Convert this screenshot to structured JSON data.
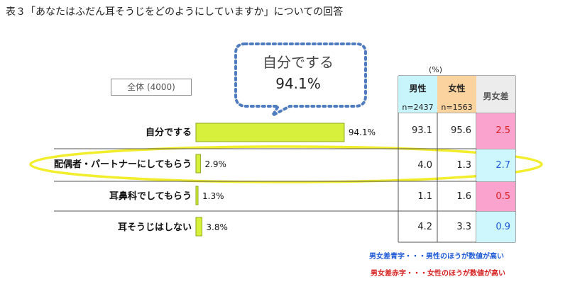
{
  "title": "表３「あなたはふだん耳そうじをどのようにしていますか」についての回答",
  "total_label": "全体 (4000)",
  "callout": {
    "title": "自分でする",
    "value": "94.1%"
  },
  "unit": "(%)",
  "table": {
    "headers": {
      "male": {
        "name": "男性",
        "n": "n=2437"
      },
      "female": {
        "name": "女性",
        "n": "n=1563"
      },
      "diff": {
        "name": "男女差"
      }
    },
    "rows": [
      {
        "male": "93.1",
        "female": "95.6",
        "diff": "2.5",
        "diff_color": "red"
      },
      {
        "male": "4.0",
        "female": "1.3",
        "diff": "2.7",
        "diff_color": "blue"
      },
      {
        "male": "1.1",
        "female": "1.6",
        "diff": "0.5",
        "diff_color": "red"
      },
      {
        "male": "4.2",
        "female": "3.3",
        "diff": "0.9",
        "diff_color": "blue"
      }
    ]
  },
  "notes": {
    "blue": "男女差青字・・・男性のほうが数値が高い",
    "red": "男女差赤字・・・女性のほうが数値が高い"
  },
  "colors": {
    "bar": "#d7f03c",
    "bar_border": "#8fa81a",
    "highlight_ellipse": "#f2ee2c",
    "callout_border": "#4f7bbf",
    "male_header": "#c8f4fb",
    "female_header": "#fbd39f",
    "diff_header": "#ececec",
    "red_cell": "#fba3cf",
    "blue_cell": "#cdf7fd",
    "red_text": "#d62222",
    "blue_text": "#1f5bd6"
  },
  "chart_data": {
    "type": "bar",
    "orientation": "horizontal",
    "categories": [
      "自分でする",
      "配偶者・パートナーにしてもらう",
      "耳鼻科でしてもらう",
      "耳そうじはしない"
    ],
    "values": [
      94.1,
      2.9,
      1.3,
      3.8
    ],
    "value_labels": [
      "94.1%",
      "2.9%",
      "1.3%",
      "3.8%"
    ],
    "xlim": [
      0,
      100
    ],
    "grid": false,
    "highlighted_category": "配偶者・パートナーにしてもらう"
  }
}
